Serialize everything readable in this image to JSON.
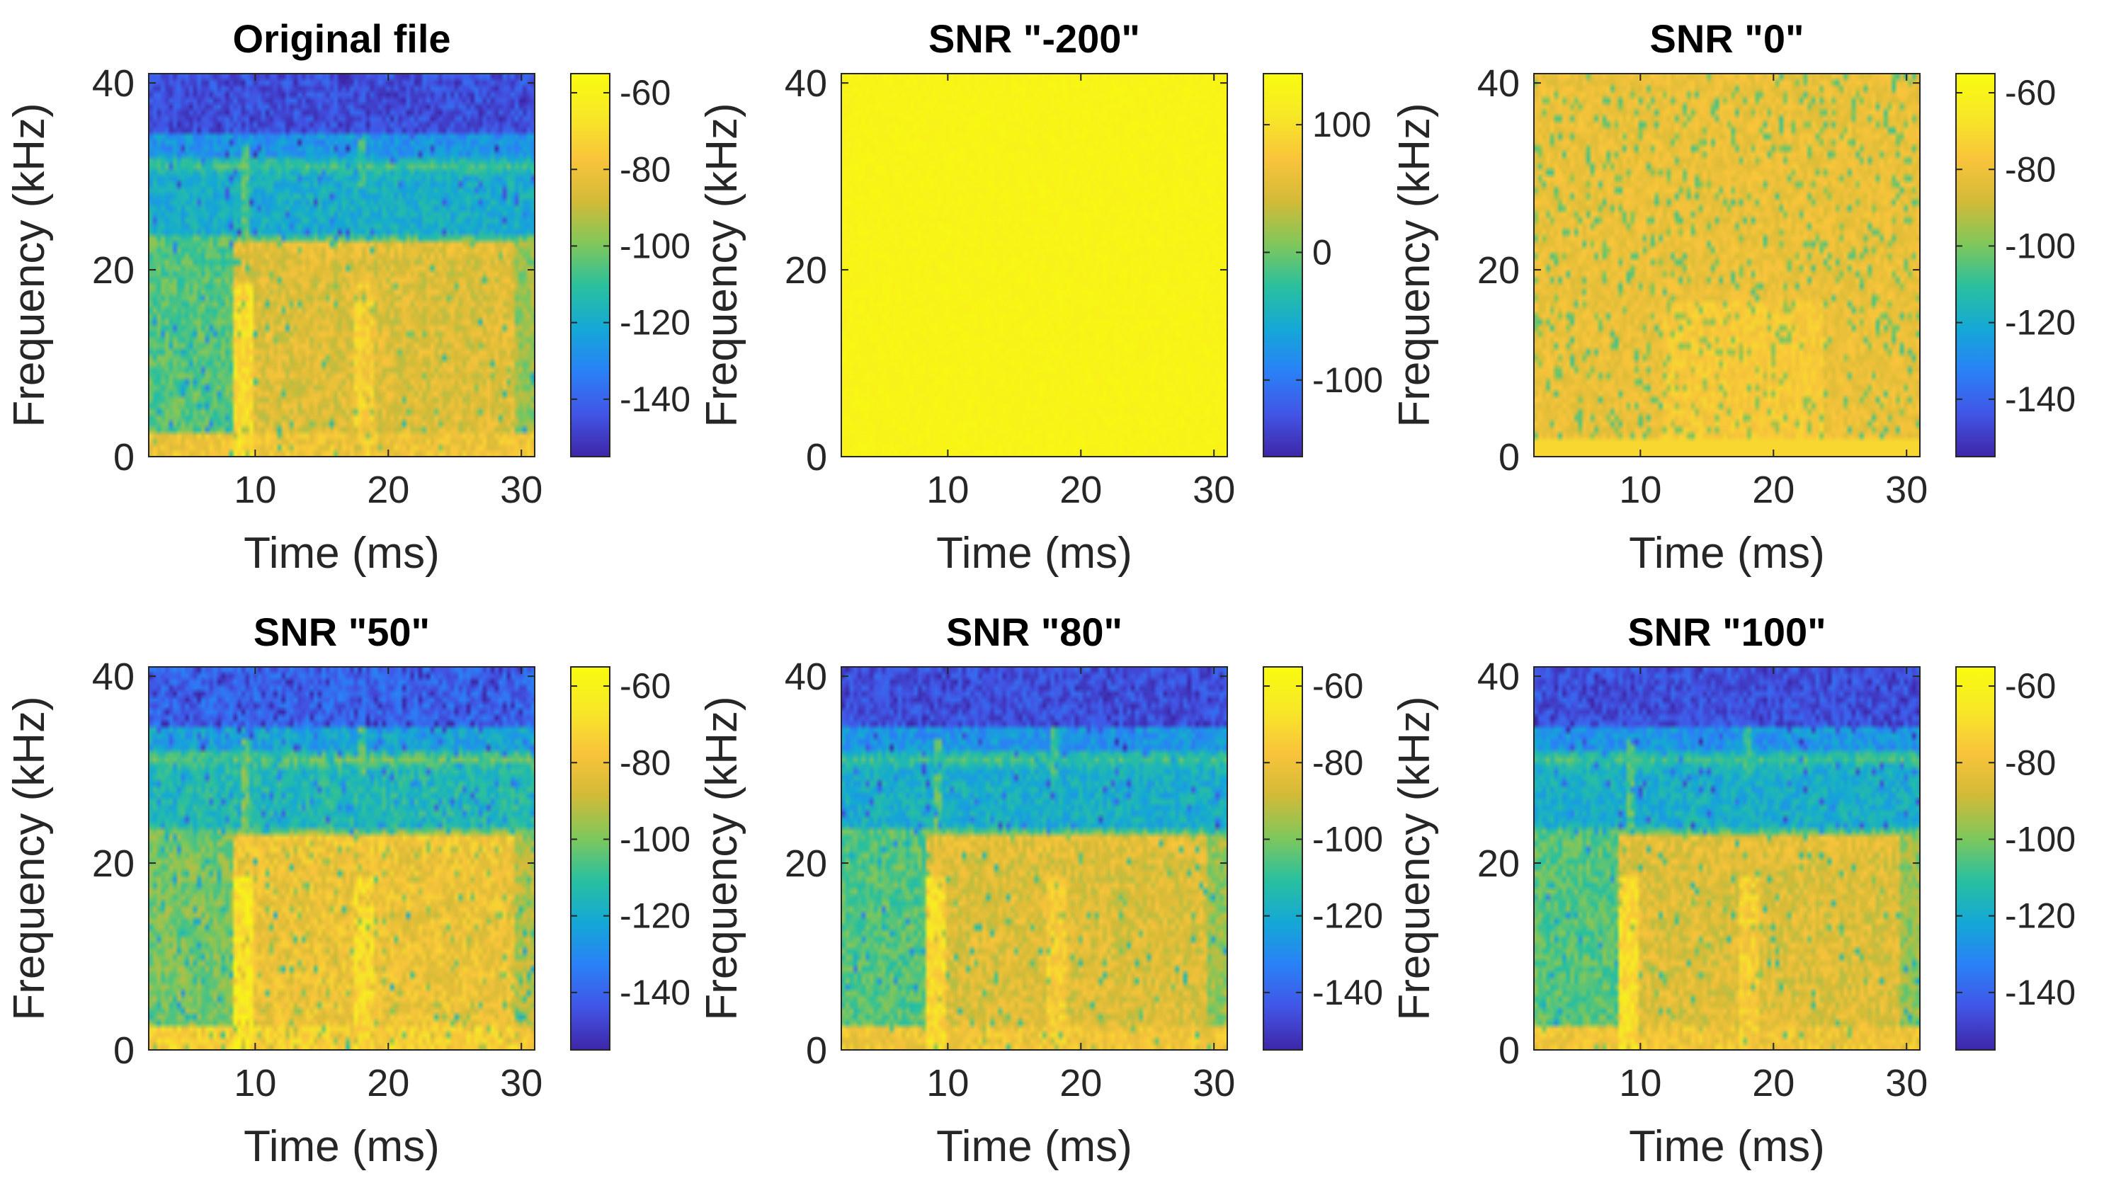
{
  "figure": {
    "colormap": [
      "#3e26a8",
      "#4255e6",
      "#2a81f7",
      "#14a8d6",
      "#29c09e",
      "#80c75a",
      "#d3ba37",
      "#f9c43b",
      "#f7e827",
      "#f9fb0e"
    ]
  },
  "chart_data": [
    {
      "type": "heatmap",
      "title": "Original file",
      "xlabel": "Time (ms)",
      "ylabel": "Frequency (kHz)",
      "xlim": [
        2,
        31
      ],
      "ylim": [
        0,
        41
      ],
      "xticks": [
        10,
        20,
        30
      ],
      "yticks": [
        0,
        20,
        40
      ],
      "colorbar": {
        "range": [
          -155,
          -55
        ],
        "ticks": [
          -60,
          -80,
          -100,
          -120,
          -140
        ]
      }
    },
    {
      "type": "heatmap",
      "title": "SNR \"-200\"",
      "xlabel": "Time (ms)",
      "ylabel": "Frequency (kHz)",
      "xlim": [
        2,
        31
      ],
      "ylim": [
        0,
        41
      ],
      "xticks": [
        10,
        20,
        30
      ],
      "yticks": [
        0,
        20,
        40
      ],
      "colorbar": {
        "range": [
          -160,
          140
        ],
        "ticks": [
          100,
          0,
          -100
        ]
      }
    },
    {
      "type": "heatmap",
      "title": "SNR \"0\"",
      "xlabel": "Time (ms)",
      "ylabel": "Frequency (kHz)",
      "xlim": [
        2,
        31
      ],
      "ylim": [
        0,
        41
      ],
      "xticks": [
        10,
        20,
        30
      ],
      "yticks": [
        0,
        20,
        40
      ],
      "colorbar": {
        "range": [
          -155,
          -55
        ],
        "ticks": [
          -60,
          -80,
          -100,
          -120,
          -140
        ]
      }
    },
    {
      "type": "heatmap",
      "title": "SNR \"50\"",
      "xlabel": "Time (ms)",
      "ylabel": "Frequency (kHz)",
      "xlim": [
        2,
        31
      ],
      "ylim": [
        0,
        41
      ],
      "xticks": [
        10,
        20,
        30
      ],
      "yticks": [
        0,
        20,
        40
      ],
      "colorbar": {
        "range": [
          -155,
          -55
        ],
        "ticks": [
          -60,
          -80,
          -100,
          -120,
          -140
        ]
      }
    },
    {
      "type": "heatmap",
      "title": "SNR \"80\"",
      "xlabel": "Time (ms)",
      "ylabel": "Frequency (kHz)",
      "xlim": [
        2,
        31
      ],
      "ylim": [
        0,
        41
      ],
      "xticks": [
        10,
        20,
        30
      ],
      "yticks": [
        0,
        20,
        40
      ],
      "colorbar": {
        "range": [
          -155,
          -55
        ],
        "ticks": [
          -60,
          -80,
          -100,
          -120,
          -140
        ]
      }
    },
    {
      "type": "heatmap",
      "title": "SNR \"100\"",
      "xlabel": "Time (ms)",
      "ylabel": "Frequency (kHz)",
      "xlim": [
        2,
        31
      ],
      "ylim": [
        0,
        41
      ],
      "xticks": [
        10,
        20,
        30
      ],
      "yticks": [
        0,
        20,
        40
      ],
      "colorbar": {
        "range": [
          -155,
          -55
        ],
        "ticks": [
          -60,
          -80,
          -100,
          -120,
          -140
        ]
      }
    }
  ]
}
